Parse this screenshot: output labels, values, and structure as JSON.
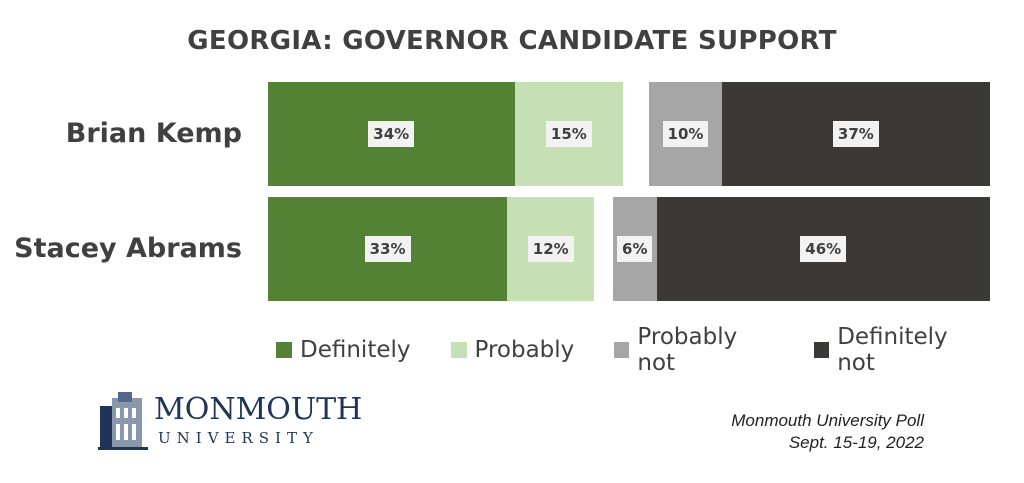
{
  "chart_data": {
    "type": "bar",
    "orientation": "horizontal-diverging",
    "title": "GEORGIA: GOVERNOR CANDIDATE SUPPORT",
    "categories": [
      "Brian Kemp",
      "Stacey Abrams"
    ],
    "series": [
      {
        "name": "Definitely",
        "side": "positive",
        "color": "#548235",
        "values": [
          34,
          33
        ]
      },
      {
        "name": "Probably",
        "side": "positive",
        "color": "#c5e0b4",
        "values": [
          15,
          12
        ]
      },
      {
        "name": "Probably not",
        "side": "negative",
        "color": "#a6a6a6",
        "values": [
          10,
          6
        ]
      },
      {
        "name": "Definitely not",
        "side": "negative",
        "color": "#3b3838",
        "values": [
          37,
          46
        ]
      }
    ],
    "labels": [
      [
        "34%",
        "15%",
        "10%",
        "37%"
      ],
      [
        "33%",
        "12%",
        "6%",
        "46%"
      ]
    ],
    "legend_position": "bottom"
  },
  "logo": {
    "name": "MONMOUTH",
    "sub": "UNIVERSITY"
  },
  "source": {
    "line1": "Monmouth University Poll",
    "line2": "Sept. 15-19, 2022"
  }
}
